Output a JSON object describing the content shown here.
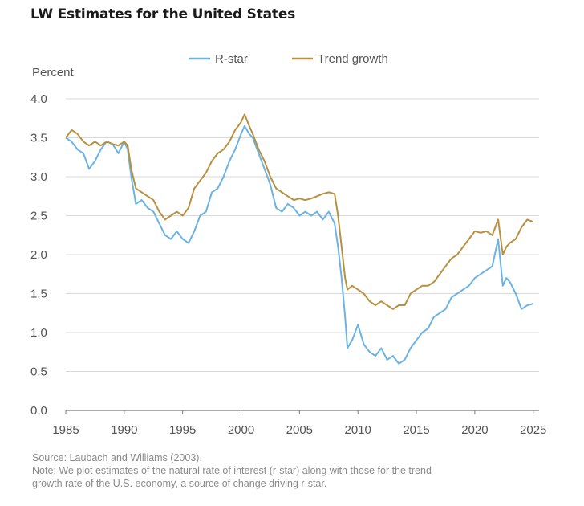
{
  "title": "LW Estimates for the United States",
  "chart_data": {
    "type": "line",
    "ylabel": "Percent",
    "xlim": [
      1985,
      2025.5
    ],
    "ylim": [
      0.0,
      4.0
    ],
    "x_ticks": [
      1985,
      1990,
      1995,
      2000,
      2005,
      2010,
      2015,
      2020,
      2025
    ],
    "y_ticks": [
      0.0,
      0.5,
      1.0,
      1.5,
      2.0,
      2.5,
      3.0,
      3.5,
      4.0
    ],
    "x_tick_labels": [
      "1985",
      "1990",
      "1995",
      "2000",
      "2005",
      "2010",
      "2015",
      "2020",
      "2025"
    ],
    "y_tick_labels": [
      "0.0",
      "0.5",
      "1.0",
      "1.5",
      "2.0",
      "2.5",
      "3.0",
      "3.5",
      "4.0"
    ],
    "grid": true,
    "legend_position": "top-center",
    "series": [
      {
        "name": "R-star",
        "color": "#6bb3e3",
        "points": [
          [
            1985.0,
            3.5
          ],
          [
            1985.5,
            3.45
          ],
          [
            1986.0,
            3.35
          ],
          [
            1986.5,
            3.3
          ],
          [
            1987.0,
            3.1
          ],
          [
            1987.5,
            3.2
          ],
          [
            1988.0,
            3.35
          ],
          [
            1988.5,
            3.45
          ],
          [
            1989.0,
            3.42
          ],
          [
            1989.5,
            3.3
          ],
          [
            1990.0,
            3.45
          ],
          [
            1990.3,
            3.35
          ],
          [
            1990.6,
            3.0
          ],
          [
            1991.0,
            2.65
          ],
          [
            1991.5,
            2.7
          ],
          [
            1992.0,
            2.6
          ],
          [
            1992.5,
            2.55
          ],
          [
            1993.0,
            2.4
          ],
          [
            1993.5,
            2.25
          ],
          [
            1994.0,
            2.2
          ],
          [
            1994.5,
            2.3
          ],
          [
            1995.0,
            2.2
          ],
          [
            1995.5,
            2.15
          ],
          [
            1996.0,
            2.3
          ],
          [
            1996.5,
            2.5
          ],
          [
            1997.0,
            2.55
          ],
          [
            1997.5,
            2.8
          ],
          [
            1998.0,
            2.85
          ],
          [
            1998.5,
            3.0
          ],
          [
            1999.0,
            3.2
          ],
          [
            1999.5,
            3.35
          ],
          [
            2000.0,
            3.55
          ],
          [
            2000.3,
            3.65
          ],
          [
            2000.7,
            3.55
          ],
          [
            2001.0,
            3.5
          ],
          [
            2001.5,
            3.3
          ],
          [
            2002.0,
            3.1
          ],
          [
            2002.5,
            2.9
          ],
          [
            2003.0,
            2.6
          ],
          [
            2003.5,
            2.55
          ],
          [
            2004.0,
            2.65
          ],
          [
            2004.5,
            2.6
          ],
          [
            2005.0,
            2.5
          ],
          [
            2005.5,
            2.55
          ],
          [
            2006.0,
            2.5
          ],
          [
            2006.5,
            2.55
          ],
          [
            2007.0,
            2.45
          ],
          [
            2007.5,
            2.55
          ],
          [
            2008.0,
            2.4
          ],
          [
            2008.3,
            2.1
          ],
          [
            2008.6,
            1.7
          ],
          [
            2008.9,
            1.2
          ],
          [
            2009.1,
            0.8
          ],
          [
            2009.5,
            0.9
          ],
          [
            2010.0,
            1.1
          ],
          [
            2010.5,
            0.85
          ],
          [
            2011.0,
            0.75
          ],
          [
            2011.5,
            0.7
          ],
          [
            2012.0,
            0.8
          ],
          [
            2012.5,
            0.65
          ],
          [
            2013.0,
            0.7
          ],
          [
            2013.5,
            0.6
          ],
          [
            2014.0,
            0.65
          ],
          [
            2014.5,
            0.8
          ],
          [
            2015.0,
            0.9
          ],
          [
            2015.5,
            1.0
          ],
          [
            2016.0,
            1.05
          ],
          [
            2016.5,
            1.2
          ],
          [
            2017.0,
            1.25
          ],
          [
            2017.5,
            1.3
          ],
          [
            2018.0,
            1.45
          ],
          [
            2018.5,
            1.5
          ],
          [
            2019.0,
            1.55
          ],
          [
            2019.5,
            1.6
          ],
          [
            2020.0,
            1.7
          ],
          [
            2020.5,
            1.75
          ],
          [
            2021.0,
            1.8
          ],
          [
            2021.5,
            1.85
          ],
          [
            2022.0,
            2.2
          ],
          [
            2022.4,
            1.6
          ],
          [
            2022.7,
            1.7
          ],
          [
            2023.0,
            1.65
          ],
          [
            2023.5,
            1.5
          ],
          [
            2024.0,
            1.3
          ],
          [
            2024.5,
            1.35
          ],
          [
            2025.0,
            1.37
          ]
        ]
      },
      {
        "name": "Trend growth",
        "color": "#b8913f",
        "points": [
          [
            1985.0,
            3.5
          ],
          [
            1985.5,
            3.6
          ],
          [
            1986.0,
            3.55
          ],
          [
            1986.5,
            3.45
          ],
          [
            1987.0,
            3.4
          ],
          [
            1987.5,
            3.45
          ],
          [
            1988.0,
            3.4
          ],
          [
            1988.5,
            3.45
          ],
          [
            1989.0,
            3.42
          ],
          [
            1989.5,
            3.4
          ],
          [
            1990.0,
            3.45
          ],
          [
            1990.3,
            3.4
          ],
          [
            1990.6,
            3.1
          ],
          [
            1991.0,
            2.85
          ],
          [
            1991.5,
            2.8
          ],
          [
            1992.0,
            2.75
          ],
          [
            1992.5,
            2.7
          ],
          [
            1993.0,
            2.55
          ],
          [
            1993.5,
            2.45
          ],
          [
            1994.0,
            2.5
          ],
          [
            1994.5,
            2.55
          ],
          [
            1995.0,
            2.5
          ],
          [
            1995.5,
            2.6
          ],
          [
            1996.0,
            2.85
          ],
          [
            1996.5,
            2.95
          ],
          [
            1997.0,
            3.05
          ],
          [
            1997.5,
            3.2
          ],
          [
            1998.0,
            3.3
          ],
          [
            1998.5,
            3.35
          ],
          [
            1999.0,
            3.45
          ],
          [
            1999.5,
            3.6
          ],
          [
            2000.0,
            3.7
          ],
          [
            2000.3,
            3.8
          ],
          [
            2000.7,
            3.65
          ],
          [
            2001.0,
            3.55
          ],
          [
            2001.5,
            3.35
          ],
          [
            2002.0,
            3.2
          ],
          [
            2002.5,
            3.0
          ],
          [
            2003.0,
            2.85
          ],
          [
            2003.5,
            2.8
          ],
          [
            2004.0,
            2.75
          ],
          [
            2004.5,
            2.7
          ],
          [
            2005.0,
            2.72
          ],
          [
            2005.5,
            2.7
          ],
          [
            2006.0,
            2.72
          ],
          [
            2006.5,
            2.75
          ],
          [
            2007.0,
            2.78
          ],
          [
            2007.5,
            2.8
          ],
          [
            2008.0,
            2.78
          ],
          [
            2008.3,
            2.5
          ],
          [
            2008.6,
            2.1
          ],
          [
            2008.9,
            1.7
          ],
          [
            2009.1,
            1.55
          ],
          [
            2009.5,
            1.6
          ],
          [
            2010.0,
            1.55
          ],
          [
            2010.5,
            1.5
          ],
          [
            2011.0,
            1.4
          ],
          [
            2011.5,
            1.35
          ],
          [
            2012.0,
            1.4
          ],
          [
            2012.5,
            1.35
          ],
          [
            2013.0,
            1.3
          ],
          [
            2013.5,
            1.35
          ],
          [
            2014.0,
            1.35
          ],
          [
            2014.5,
            1.5
          ],
          [
            2015.0,
            1.55
          ],
          [
            2015.5,
            1.6
          ],
          [
            2016.0,
            1.6
          ],
          [
            2016.5,
            1.65
          ],
          [
            2017.0,
            1.75
          ],
          [
            2017.5,
            1.85
          ],
          [
            2018.0,
            1.95
          ],
          [
            2018.5,
            2.0
          ],
          [
            2019.0,
            2.1
          ],
          [
            2019.5,
            2.2
          ],
          [
            2020.0,
            2.3
          ],
          [
            2020.5,
            2.28
          ],
          [
            2021.0,
            2.3
          ],
          [
            2021.5,
            2.25
          ],
          [
            2022.0,
            2.45
          ],
          [
            2022.4,
            2.0
          ],
          [
            2022.7,
            2.1
          ],
          [
            2023.0,
            2.15
          ],
          [
            2023.5,
            2.2
          ],
          [
            2024.0,
            2.35
          ],
          [
            2024.5,
            2.45
          ],
          [
            2025.0,
            2.42
          ]
        ]
      }
    ]
  },
  "source": "Source: Laubach and Williams (2003).",
  "note_line1": "Note: We plot estimates of the natural rate of interest (r-star) along with those for the trend",
  "note_line2": "growth rate of the U.S. economy, a source of change driving r-star."
}
